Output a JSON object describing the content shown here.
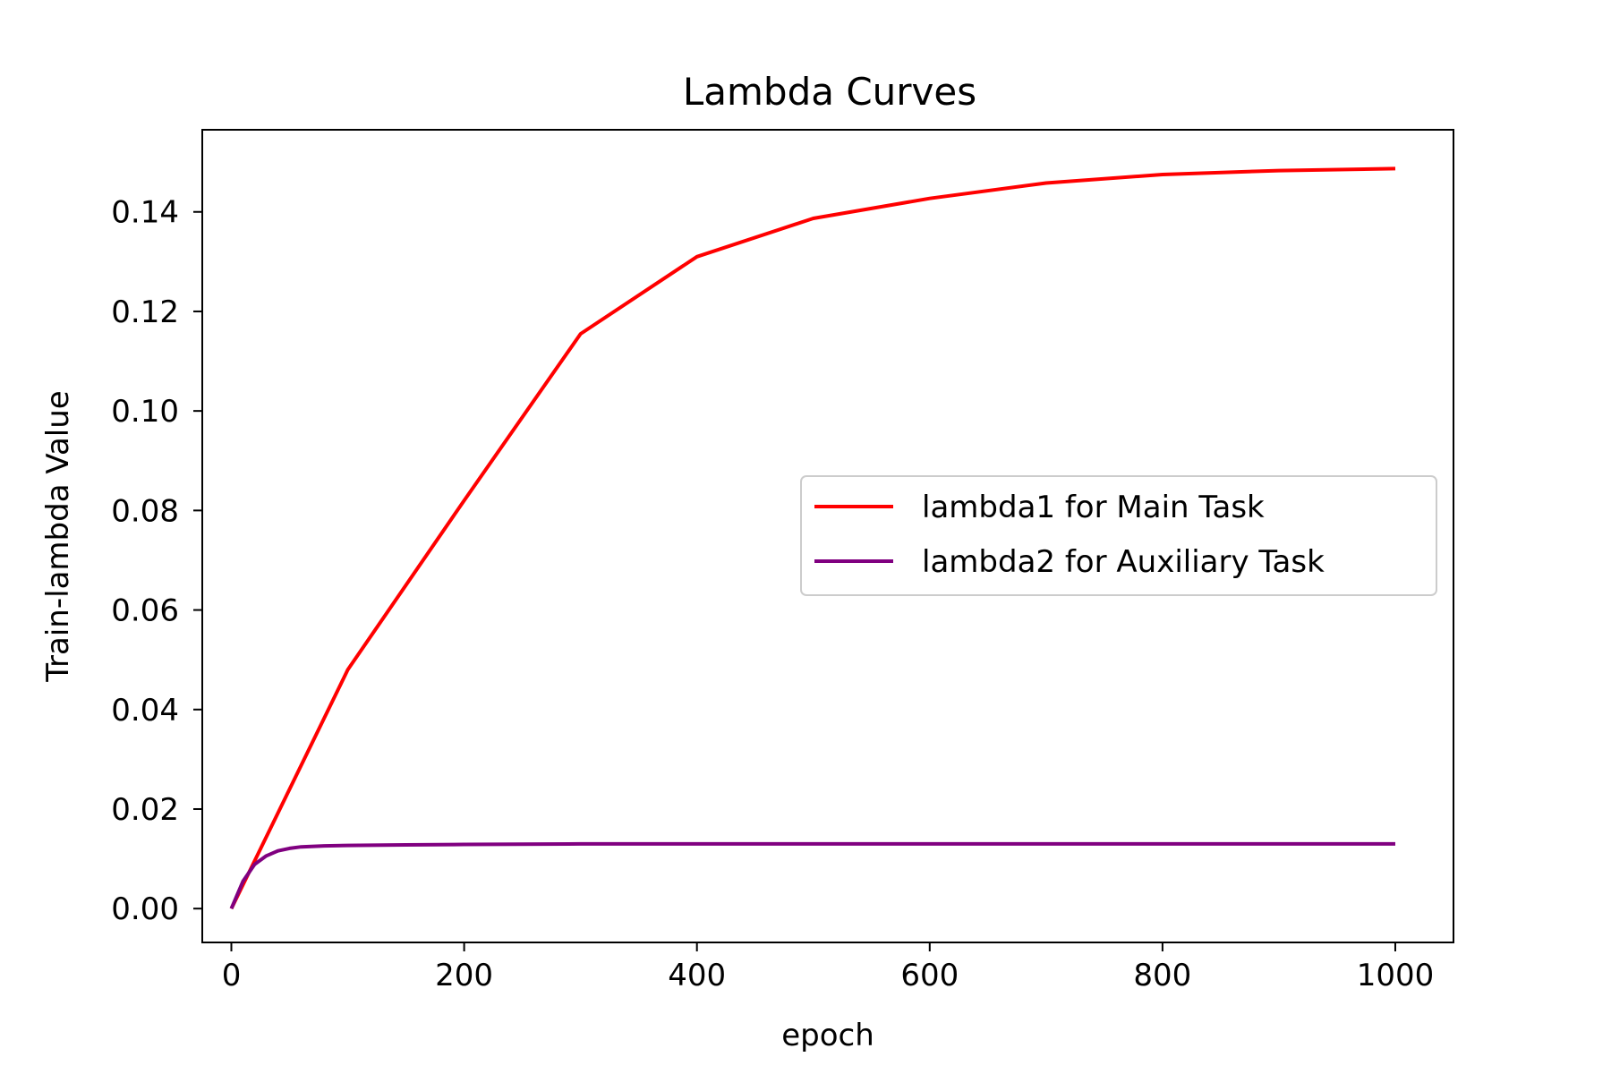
{
  "chart_data": {
    "type": "line",
    "title": "Lambda Curves",
    "xlabel": "epoch",
    "ylabel": "Train-lambda Value",
    "xlim": [
      -25,
      1050
    ],
    "ylim": [
      -0.0068,
      0.1565
    ],
    "xticks": [
      0,
      200,
      400,
      600,
      800,
      1000
    ],
    "xtick_labels": [
      "0",
      "200",
      "400",
      "600",
      "800",
      "1000"
    ],
    "yticks": [
      0.0,
      0.02,
      0.04,
      0.06,
      0.08,
      0.1,
      0.12,
      0.14
    ],
    "ytick_labels": [
      "0.00",
      "0.02",
      "0.04",
      "0.06",
      "0.08",
      "0.10",
      "0.12",
      "0.14"
    ],
    "grid": false,
    "legend_position": "center-right",
    "series": [
      {
        "name": "lambda1 for Main Task",
        "color": "#ff0000",
        "x": [
          0,
          100,
          200,
          300,
          400,
          500,
          600,
          700,
          800,
          900,
          1000
        ],
        "y": [
          0.0,
          0.048,
          0.082,
          0.1155,
          0.131,
          0.1387,
          0.1427,
          0.1458,
          0.1475,
          0.1483,
          0.1487
        ]
      },
      {
        "name": "lambda2 for Auxiliary Task",
        "color": "#800080",
        "x": [
          0,
          10,
          20,
          30,
          40,
          50,
          60,
          80,
          100,
          150,
          200,
          300,
          400,
          600,
          800,
          1000
        ],
        "y": [
          0.0,
          0.0055,
          0.0089,
          0.0106,
          0.0116,
          0.0121,
          0.0124,
          0.0126,
          0.0127,
          0.0128,
          0.0129,
          0.013,
          0.013,
          0.013,
          0.013,
          0.013
        ]
      }
    ]
  }
}
